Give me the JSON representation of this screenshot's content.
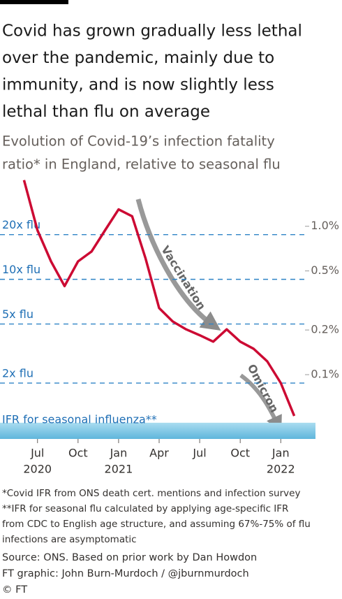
{
  "chart_data": {
    "type": "line",
    "title": [
      "Covid has grown gradually less lethal",
      "over the pandemic, mainly due to",
      "immunity, and is now slightly less",
      "lethal than flu on average"
    ],
    "subtitle": [
      "Evolution of Covid-19’s infection fatality",
      "ratio* in England, relative to seasonal flu"
    ],
    "x": [
      "2020-06",
      "2020-07",
      "2020-08",
      "2020-09",
      "2020-10",
      "2020-11",
      "2020-12",
      "2021-01",
      "2021-02",
      "2021-03",
      "2021-04",
      "2021-05",
      "2021-06",
      "2021-07",
      "2021-08",
      "2021-09",
      "2021-10",
      "2021-11",
      "2021-12",
      "2022-01",
      "2022-02"
    ],
    "series": [
      {
        "name": "Covid-19 IFR",
        "color": "#cc0a33",
        "values": [
          2.33,
          1.07,
          0.66,
          0.45,
          0.66,
          0.77,
          1.07,
          1.48,
          1.33,
          0.69,
          0.32,
          0.26,
          0.23,
          0.21,
          0.19,
          0.23,
          0.19,
          0.17,
          0.14,
          0.1,
          0.06
        ]
      }
    ],
    "log_y": true,
    "xlim": [
      "2020-05",
      "2022-03"
    ],
    "xticks": [
      {
        "value": "2020-07",
        "label": "Jul"
      },
      {
        "value": "2020-10",
        "label": "Oct"
      },
      {
        "value": "2021-01",
        "label": "Jan"
      },
      {
        "value": "2021-04",
        "label": "Apr"
      },
      {
        "value": "2021-07",
        "label": "Jul"
      },
      {
        "value": "2021-10",
        "label": "Oct"
      },
      {
        "value": "2022-01",
        "label": "Jan"
      }
    ],
    "xtick_years": [
      {
        "value": "2020-07",
        "label": "2020"
      },
      {
        "value": "2021-01",
        "label": "2021"
      },
      {
        "value": "2022-01",
        "label": "2022"
      }
    ],
    "ylim": [
      0.042,
      2.4
    ],
    "yticks": [
      {
        "value": 1,
        "label": "1.0%"
      },
      {
        "value": 0.5,
        "label": "0.5%"
      },
      {
        "value": 0.2,
        "label": "0.2%"
      },
      {
        "value": 0.1,
        "label": "0.1%"
      }
    ],
    "flu_lines": [
      {
        "value": 1,
        "label": "20x flu"
      },
      {
        "value": 0.5,
        "label": "10x flu"
      },
      {
        "value": 0.25,
        "label": "5x flu"
      },
      {
        "value": 0.1,
        "label": "2x flu"
      }
    ],
    "flu_band": {
      "label": "IFR for seasonal influenza**",
      "range": [
        0.042,
        0.054
      ]
    },
    "annotations": [
      "Vaccination",
      "Omicron"
    ],
    "footnotes": [
      "*Covid IFR from ONS death cert. mentions and infection survey",
      "**IFR for seasonal flu calculated by applying age-specific IFR",
      "from CDC to English age structure, and assuming 67%-75% of flu",
      "infections are asymptomatic"
    ],
    "source": [
      "Source: ONS. Based on prior work by Dan Howdon",
      "FT graphic: John Burn-Murdoch / @jburnmurdoch",
      "© FT"
    ]
  }
}
